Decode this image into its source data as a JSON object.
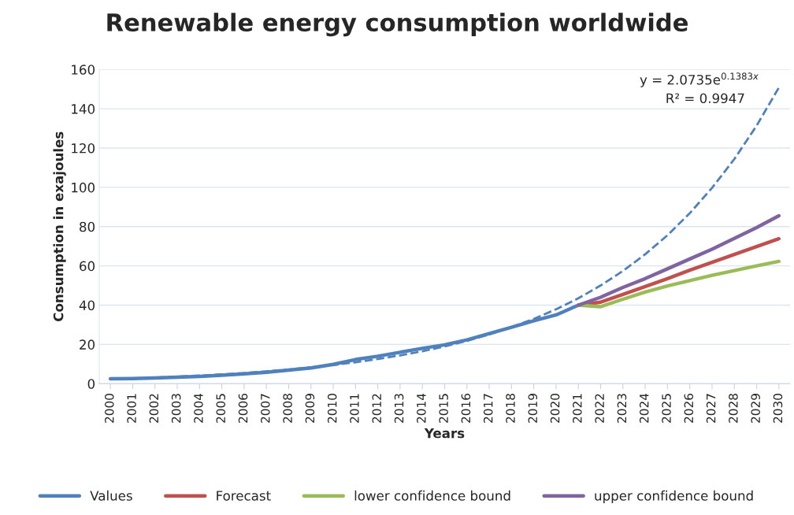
{
  "chart_data": {
    "type": "line",
    "title": "Renewable energy consumption worldwide",
    "xlabel": "Years",
    "ylabel": "Consumption in exajoules",
    "categories": [
      "2000",
      "2001",
      "2002",
      "2003",
      "2004",
      "2005",
      "2006",
      "2007",
      "2008",
      "2009",
      "2010",
      "2011",
      "2012",
      "2013",
      "2014",
      "2015",
      "2016",
      "2017",
      "2018",
      "2019",
      "2020",
      "2021",
      "2022",
      "2023",
      "2024",
      "2025",
      "2026",
      "2027",
      "2028",
      "2029",
      "2030"
    ],
    "series": [
      {
        "name": "Values",
        "color": "#4f81bd",
        "values": [
          2.5,
          2.6,
          2.9,
          3.3,
          3.7,
          4.3,
          5.0,
          5.8,
          6.9,
          8.0,
          9.8,
          12.3,
          14.0,
          16.0,
          18.0,
          19.8,
          22.3,
          25.5,
          28.7,
          32.0,
          35.0,
          40.0,
          null,
          null,
          null,
          null,
          null,
          null,
          null,
          null,
          null
        ]
      },
      {
        "name": "Forecast",
        "color": "#c0504d",
        "values": [
          null,
          null,
          null,
          null,
          null,
          null,
          null,
          null,
          null,
          null,
          null,
          null,
          null,
          null,
          null,
          null,
          null,
          null,
          null,
          null,
          null,
          40.0,
          41.5,
          45.5,
          49.5,
          53.5,
          57.8,
          61.8,
          65.8,
          69.8,
          73.8
        ]
      },
      {
        "name": "lower confidence bound",
        "color": "#9bbb59",
        "values": [
          null,
          null,
          null,
          null,
          null,
          null,
          null,
          null,
          null,
          null,
          null,
          null,
          null,
          null,
          null,
          null,
          null,
          null,
          null,
          null,
          null,
          40.0,
          39.2,
          43.0,
          46.7,
          49.8,
          52.5,
          55.2,
          57.6,
          60.0,
          62.3
        ]
      },
      {
        "name": "upper confidence bound",
        "color": "#8064a2",
        "values": [
          null,
          null,
          null,
          null,
          null,
          null,
          null,
          null,
          null,
          null,
          null,
          null,
          null,
          null,
          null,
          null,
          null,
          null,
          null,
          null,
          null,
          40.0,
          44.0,
          49.0,
          53.5,
          58.5,
          63.5,
          68.5,
          74.0,
          79.5,
          85.5
        ]
      },
      {
        "color": "#4f81bd",
        "line_style": "dashed",
        "values": [
          2.4,
          2.7,
          3.1,
          3.6,
          4.1,
          4.7,
          5.4,
          6.3,
          7.2,
          8.3,
          9.5,
          10.9,
          12.6,
          14.4,
          16.5,
          19.0,
          21.8,
          25.1,
          28.8,
          33.0,
          37.9,
          43.5,
          50.0,
          57.4,
          65.9,
          75.6,
          86.8,
          99.7,
          114.4,
          131.4,
          150.8
        ]
      }
    ],
    "ylim": [
      0,
      160
    ],
    "yticks": [
      0,
      20,
      40,
      60,
      80,
      100,
      120,
      140,
      160
    ],
    "grid": "y",
    "legend": "bottom",
    "marker": "none",
    "line_style": "solid",
    "annotations": [
      "y = 2.0735e$^{0.1383x}$",
      "R² = 0.9947"
    ]
  }
}
